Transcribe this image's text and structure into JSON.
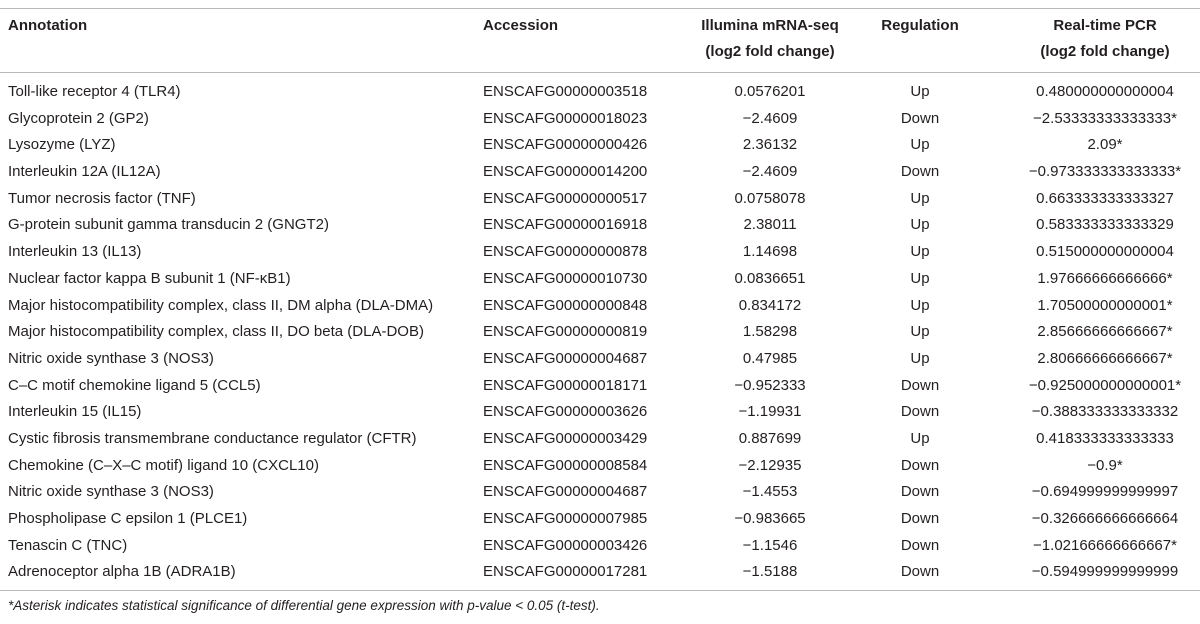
{
  "table": {
    "headers": [
      [
        "Annotation"
      ],
      [
        "Accession"
      ],
      [
        "Illumina mRNA-seq",
        "(log2 fold change)"
      ],
      [
        "Regulation"
      ],
      [
        "Real-time PCR",
        "(log2 fold change)"
      ]
    ],
    "rows": [
      [
        "Toll-like receptor 4 (TLR4)",
        "ENSCAFG00000003518",
        "0.0576201",
        "Up",
        "0.480000000000004"
      ],
      [
        "Glycoprotein 2 (GP2)",
        "ENSCAFG00000018023",
        "−2.4609",
        "Down",
        "−2.53333333333333*"
      ],
      [
        "Lysozyme (LYZ)",
        "ENSCAFG00000000426",
        "2.36132",
        "Up",
        "2.09*"
      ],
      [
        "Interleukin 12A (IL12A)",
        "ENSCAFG00000014200",
        "−2.4609",
        "Down",
        "−0.973333333333333*"
      ],
      [
        "Tumor necrosis factor (TNF)",
        "ENSCAFG00000000517",
        "0.0758078",
        "Up",
        "0.663333333333327"
      ],
      [
        "G-protein subunit gamma transducin 2 (GNGT2)",
        "ENSCAFG00000016918",
        "2.38011",
        "Up",
        "0.583333333333329"
      ],
      [
        "Interleukin 13 (IL13)",
        "ENSCAFG00000000878",
        "1.14698",
        "Up",
        "0.515000000000004"
      ],
      [
        "Nuclear factor kappa B subunit 1 (NF-κB1)",
        "ENSCAFG00000010730",
        "0.0836651",
        "Up",
        "1.97666666666666*"
      ],
      [
        "Major histocompatibility complex, class II, DM alpha (DLA-DMA)",
        "ENSCAFG00000000848",
        "0.834172",
        "Up",
        "1.70500000000001*"
      ],
      [
        "Major histocompatibility complex, class II, DO beta (DLA-DOB)",
        "ENSCAFG00000000819",
        "1.58298",
        "Up",
        "2.85666666666667*"
      ],
      [
        "Nitric oxide synthase 3 (NOS3)",
        "ENSCAFG00000004687",
        "0.47985",
        "Up",
        "2.80666666666667*"
      ],
      [
        "C–C motif chemokine ligand 5 (CCL5)",
        "ENSCAFG00000018171",
        "−0.952333",
        "Down",
        "−0.925000000000001*"
      ],
      [
        "Interleukin 15 (IL15)",
        "ENSCAFG00000003626",
        "−1.19931",
        "Down",
        "−0.388333333333332"
      ],
      [
        "Cystic fibrosis transmembrane conductance regulator (CFTR)",
        "ENSCAFG00000003429",
        "0.887699",
        "Up",
        "0.418333333333333"
      ],
      [
        "Chemokine (C–X–C motif) ligand 10 (CXCL10)",
        "ENSCAFG00000008584",
        "−2.12935",
        "Down",
        "−0.9*"
      ],
      [
        "Nitric oxide synthase 3 (NOS3)",
        "ENSCAFG00000004687",
        "−1.4553",
        "Down",
        "−0.694999999999997"
      ],
      [
        "Phospholipase C epsilon 1 (PLCE1)",
        "ENSCAFG00000007985",
        "−0.983665",
        "Down",
        "−0.326666666666664"
      ],
      [
        "Tenascin C (TNC)",
        "ENSCAFG00000003426",
        "−1.1546",
        "Down",
        "−1.02166666666667*"
      ],
      [
        "Adrenoceptor alpha 1B (ADRA1B)",
        "ENSCAFG00000017281",
        "−1.5188",
        "Down",
        "−0.594999999999999"
      ]
    ],
    "footnote": "*Asterisk indicates statistical significance of differential gene expression with p-value < 0.05 (t-test)."
  }
}
